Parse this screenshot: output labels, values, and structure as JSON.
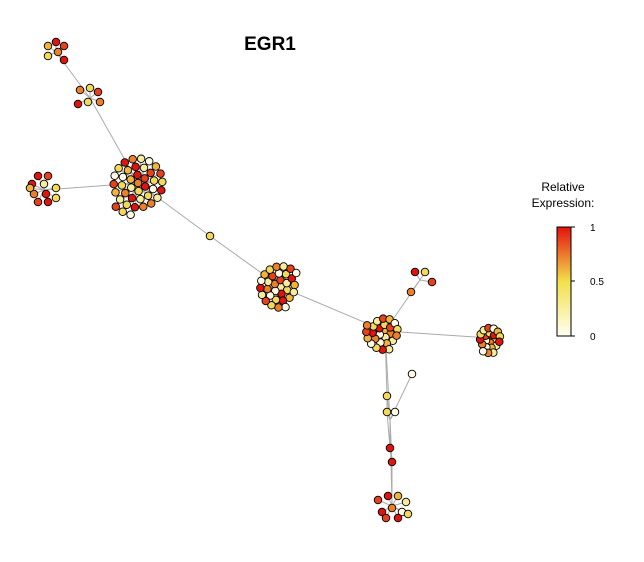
{
  "title": "EGR1",
  "legend": {
    "title_line1": "Relative",
    "title_line2": "Expression:",
    "ticks": [
      "1",
      "0.5",
      "0"
    ],
    "color_low": "#fffff2",
    "color_mid": "#f2e04a",
    "color_high": "#e5110e"
  },
  "colors": {
    "edge": "#aaaaaa",
    "node_stroke": "#000000",
    "scale": [
      "#fff9e6",
      "#f7ec9e",
      "#f3d95a",
      "#f0b43a",
      "#ec7f2a",
      "#e6401c",
      "#e0140f"
    ]
  },
  "network": {
    "description_free": true,
    "clusters": [
      {
        "id": "c_top",
        "size": 6,
        "levels": [
          3,
          6,
          5,
          2,
          4,
          6
        ]
      },
      {
        "id": "c_top2",
        "size": 6,
        "levels": [
          4,
          2,
          5,
          6,
          2,
          4
        ]
      },
      {
        "id": "c_left",
        "size": 11,
        "levels": [
          6,
          5,
          6,
          1,
          2,
          4,
          6,
          5,
          6,
          3,
          2
        ]
      },
      {
        "id": "c_hub1",
        "size": 40,
        "levels": [
          4,
          6,
          2,
          1,
          3,
          6,
          5,
          2,
          1,
          6,
          4,
          2,
          0,
          3,
          6,
          1,
          5,
          2,
          0,
          4,
          6,
          2,
          1,
          3,
          5,
          0,
          2,
          6,
          4,
          1,
          0,
          3,
          5,
          2,
          6,
          1,
          4,
          0,
          2,
          5
        ]
      },
      {
        "id": "c_bridge",
        "size": 1,
        "levels": [
          2
        ]
      },
      {
        "id": "c_hub2",
        "size": 32,
        "levels": [
          1,
          2,
          6,
          0,
          4,
          5,
          1,
          3,
          6,
          2,
          0,
          4,
          1,
          5,
          0,
          2,
          6,
          3,
          1,
          0,
          4,
          2,
          5,
          1,
          6,
          0,
          3,
          2,
          4,
          1,
          5,
          0
        ]
      },
      {
        "id": "c_hub3",
        "size": 26,
        "levels": [
          3,
          4,
          1,
          0,
          6,
          2,
          5,
          1,
          3,
          0,
          4,
          6,
          2,
          1,
          5,
          3,
          0,
          2,
          4,
          1,
          6,
          2,
          0,
          3,
          5,
          4
        ]
      },
      {
        "id": "c_upper_right",
        "size": 4,
        "levels": [
          6,
          2,
          5,
          4
        ]
      },
      {
        "id": "c_right",
        "size": 22,
        "levels": [
          6,
          1,
          4,
          0,
          5,
          2,
          6,
          1,
          3,
          0,
          4,
          6,
          2,
          1,
          5,
          0,
          3,
          2,
          6,
          1,
          4,
          0
        ]
      },
      {
        "id": "c_chain",
        "size": 6,
        "levels": [
          2,
          2,
          0,
          6,
          6,
          0
        ]
      },
      {
        "id": "c_bottom",
        "size": 10,
        "levels": [
          5,
          6,
          3,
          1,
          6,
          4,
          0,
          5,
          6,
          2
        ]
      }
    ]
  }
}
